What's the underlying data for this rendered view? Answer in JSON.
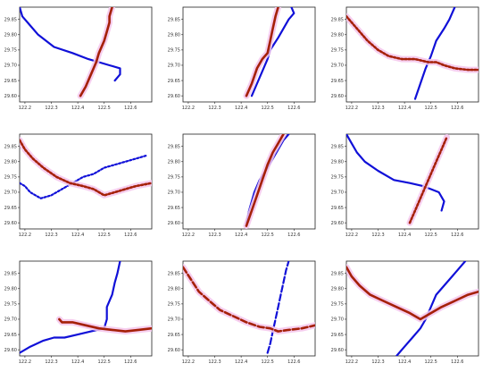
{
  "colors": {
    "blue_track": "#1010d8",
    "red_track": "#a52008",
    "halo": "#f4c6ec"
  },
  "chart_data": [
    {
      "type": "line",
      "panel": 1,
      "xlim": [
        122.18,
        122.68
      ],
      "ylim": [
        29.58,
        29.89
      ],
      "xticks": [
        "122.2",
        "122.3",
        "122.4",
        "122.5",
        "122.6"
      ],
      "yticks": [
        "29.60",
        "29.65",
        "29.70",
        "29.75",
        "29.80",
        "29.85"
      ],
      "series": [
        {
          "color": "blue_track",
          "style": "solid",
          "x": [
            122.18,
            122.19,
            122.22,
            122.25,
            122.31,
            122.38,
            122.44,
            122.52,
            122.56,
            122.56,
            122.54
          ],
          "y": [
            29.89,
            29.86,
            29.83,
            29.8,
            29.76,
            29.74,
            29.72,
            29.7,
            29.69,
            29.67,
            29.65
          ]
        },
        {
          "color": "red_track",
          "style": "solid",
          "halo": true,
          "x": [
            122.41,
            122.43,
            122.45,
            122.47,
            122.48,
            122.5,
            122.51,
            122.52,
            122.52,
            122.53
          ],
          "y": [
            29.6,
            29.63,
            29.67,
            29.71,
            29.74,
            29.78,
            29.81,
            29.84,
            29.86,
            29.89
          ]
        }
      ]
    },
    {
      "type": "line",
      "panel": 2,
      "xlim": [
        122.18,
        122.68
      ],
      "ylim": [
        29.58,
        29.89
      ],
      "xticks": [
        "122.2",
        "122.3",
        "122.4",
        "122.5",
        "122.6"
      ],
      "yticks": [
        "29.60",
        "29.65",
        "29.70",
        "29.75",
        "29.80",
        "29.85"
      ],
      "series": [
        {
          "color": "blue_track",
          "style": "solid",
          "x": [
            122.44,
            122.46,
            122.48,
            122.5,
            122.51,
            122.54,
            122.56,
            122.58,
            122.6,
            122.59
          ],
          "y": [
            29.6,
            29.64,
            29.68,
            29.72,
            29.75,
            29.79,
            29.82,
            29.85,
            29.87,
            29.89
          ]
        },
        {
          "color": "red_track",
          "style": "solid",
          "halo": true,
          "x": [
            122.42,
            122.44,
            122.46,
            122.48,
            122.5,
            122.51,
            122.52,
            122.53,
            122.54
          ],
          "y": [
            29.6,
            29.64,
            29.69,
            29.72,
            29.74,
            29.78,
            29.82,
            29.86,
            29.89
          ]
        }
      ]
    },
    {
      "type": "line",
      "panel": 3,
      "xlim": [
        122.18,
        122.68
      ],
      "ylim": [
        29.58,
        29.89
      ],
      "xticks": [
        "122.2",
        "122.3",
        "122.4",
        "122.5",
        "122.6"
      ],
      "yticks": [
        "29.60",
        "29.65",
        "29.70",
        "29.75",
        "29.80",
        "29.85"
      ],
      "series": [
        {
          "color": "blue_track",
          "style": "solid",
          "x": [
            122.44,
            122.46,
            122.48,
            122.5,
            122.52,
            122.55,
            122.57,
            122.59
          ],
          "y": [
            29.59,
            29.64,
            29.69,
            29.73,
            29.78,
            29.82,
            29.85,
            29.89
          ]
        },
        {
          "color": "red_track",
          "style": "dotted",
          "halo": true,
          "x": [
            122.18,
            122.22,
            122.26,
            122.3,
            122.34,
            122.39,
            122.44,
            122.49,
            122.52,
            122.55,
            122.59,
            122.64,
            122.68
          ],
          "y": [
            29.86,
            29.82,
            29.78,
            29.75,
            29.73,
            29.72,
            29.72,
            29.71,
            29.71,
            29.7,
            29.69,
            29.685,
            29.685
          ]
        }
      ]
    },
    {
      "type": "line",
      "panel": 4,
      "xlim": [
        122.18,
        122.68
      ],
      "ylim": [
        29.58,
        29.89
      ],
      "xticks": [
        "122.2",
        "122.3",
        "122.4",
        "122.5",
        "122.6"
      ],
      "yticks": [
        "29.60",
        "29.65",
        "29.70",
        "29.75",
        "29.80",
        "29.85"
      ],
      "series": [
        {
          "color": "blue_track",
          "style": "dotted",
          "x": [
            122.18,
            122.2,
            122.22,
            122.26,
            122.3,
            122.34,
            122.38,
            122.42,
            122.46,
            122.5,
            122.54,
            122.58,
            122.62,
            122.66
          ],
          "y": [
            29.73,
            29.72,
            29.7,
            29.68,
            29.69,
            29.71,
            29.73,
            29.75,
            29.76,
            29.78,
            29.79,
            29.8,
            29.81,
            29.82
          ]
        },
        {
          "color": "red_track",
          "style": "dotted",
          "halo": true,
          "x": [
            122.18,
            122.2,
            122.23,
            122.27,
            122.32,
            122.37,
            122.42,
            122.46,
            122.5,
            122.54,
            122.58,
            122.62,
            122.68
          ],
          "y": [
            29.87,
            29.84,
            29.81,
            29.78,
            29.75,
            29.73,
            29.72,
            29.71,
            29.69,
            29.7,
            29.71,
            29.72,
            29.73
          ]
        }
      ]
    },
    {
      "type": "line",
      "panel": 5,
      "xlim": [
        122.18,
        122.68
      ],
      "ylim": [
        29.58,
        29.89
      ],
      "xticks": [
        "122.2",
        "122.3",
        "122.4",
        "122.5",
        "122.6"
      ],
      "yticks": [
        "29.60",
        "29.65",
        "29.70",
        "29.75",
        "29.80",
        "29.85"
      ],
      "series": [
        {
          "color": "blue_track",
          "style": "solid",
          "x": [
            122.42,
            122.43,
            122.44,
            122.45,
            122.47,
            122.5,
            122.52,
            122.54,
            122.56,
            122.58
          ],
          "y": [
            29.6,
            29.64,
            29.67,
            29.7,
            29.74,
            29.78,
            29.81,
            29.84,
            29.87,
            29.89
          ]
        },
        {
          "color": "red_track",
          "style": "solid",
          "halo": true,
          "x": [
            122.42,
            122.44,
            122.46,
            122.48,
            122.5,
            122.52,
            122.54,
            122.56
          ],
          "y": [
            29.59,
            29.64,
            29.69,
            29.74,
            29.79,
            29.83,
            29.86,
            29.89
          ]
        }
      ]
    },
    {
      "type": "line",
      "panel": 6,
      "xlim": [
        122.18,
        122.68
      ],
      "ylim": [
        29.58,
        29.89
      ],
      "xticks": [
        "122.2",
        "122.3",
        "122.4",
        "122.5",
        "122.6"
      ],
      "yticks": [
        "29.60",
        "29.65",
        "29.70",
        "29.75",
        "29.80",
        "29.85"
      ],
      "series": [
        {
          "color": "blue_track",
          "style": "solid",
          "x": [
            122.18,
            122.2,
            122.22,
            122.25,
            122.3,
            122.36,
            122.42,
            122.47,
            122.5,
            122.53,
            122.55,
            122.54
          ],
          "y": [
            29.89,
            29.86,
            29.83,
            29.8,
            29.77,
            29.74,
            29.73,
            29.72,
            29.71,
            29.7,
            29.67,
            29.64
          ]
        },
        {
          "color": "red_track",
          "style": "dotted",
          "halo": true,
          "x": [
            122.42,
            122.44,
            122.46,
            122.48,
            122.5,
            122.52,
            122.54,
            122.56
          ],
          "y": [
            29.6,
            29.64,
            29.68,
            29.72,
            29.76,
            29.8,
            29.84,
            29.88
          ]
        }
      ]
    },
    {
      "type": "line",
      "panel": 7,
      "xlim": [
        122.18,
        122.68
      ],
      "ylim": [
        29.58,
        29.89
      ],
      "xticks": [
        "122.2",
        "122.3",
        "122.4",
        "122.5",
        "122.6"
      ],
      "yticks": [
        "29.60",
        "29.65",
        "29.70",
        "29.75",
        "29.80",
        "29.85"
      ],
      "series": [
        {
          "color": "blue_track",
          "style": "solid",
          "x": [
            122.18,
            122.22,
            122.27,
            122.31,
            122.35,
            122.4,
            122.45,
            122.5,
            122.51,
            122.51,
            122.53,
            122.54,
            122.55,
            122.56
          ],
          "y": [
            29.59,
            29.61,
            29.63,
            29.64,
            29.64,
            29.65,
            29.66,
            29.67,
            29.7,
            29.74,
            29.78,
            29.82,
            29.85,
            29.89
          ]
        },
        {
          "color": "red_track",
          "style": "solid",
          "halo": true,
          "x": [
            122.33,
            122.34,
            122.38,
            122.43,
            122.48,
            122.53,
            122.58,
            122.63,
            122.68
          ],
          "y": [
            29.7,
            29.69,
            29.69,
            29.68,
            29.67,
            29.665,
            29.66,
            29.665,
            29.67
          ]
        }
      ]
    },
    {
      "type": "line",
      "panel": 8,
      "xlim": [
        122.18,
        122.68
      ],
      "ylim": [
        29.58,
        29.89
      ],
      "xticks": [
        "122.2",
        "122.3",
        "122.4",
        "122.5",
        "122.6"
      ],
      "yticks": [
        "29.60",
        "29.65",
        "29.70",
        "29.75",
        "29.80",
        "29.85"
      ],
      "series": [
        {
          "color": "blue_track",
          "style": "dashed",
          "x": [
            122.5,
            122.51,
            122.52,
            122.53,
            122.54,
            122.55,
            122.56,
            122.57,
            122.58
          ],
          "y": [
            29.59,
            29.62,
            29.66,
            29.7,
            29.74,
            29.78,
            29.82,
            29.86,
            29.89
          ]
        },
        {
          "color": "red_track",
          "style": "dashed",
          "halo": true,
          "x": [
            122.18,
            122.21,
            122.24,
            122.28,
            122.32,
            122.37,
            122.42,
            122.47,
            122.51,
            122.54,
            122.58,
            122.63,
            122.68
          ],
          "y": [
            29.87,
            29.83,
            29.79,
            29.76,
            29.73,
            29.71,
            29.69,
            29.675,
            29.67,
            29.66,
            29.665,
            29.67,
            29.68
          ]
        }
      ]
    },
    {
      "type": "line",
      "panel": 9,
      "xlim": [
        122.18,
        122.68
      ],
      "ylim": [
        29.58,
        29.89
      ],
      "xticks": [
        "122.2",
        "122.3",
        "122.4",
        "122.5",
        "122.6"
      ],
      "yticks": [
        "29.60",
        "29.65",
        "29.70",
        "29.75",
        "29.80",
        "29.85"
      ],
      "series": [
        {
          "color": "blue_track",
          "style": "solid",
          "x": [
            122.37,
            122.4,
            122.43,
            122.46,
            122.48,
            122.5,
            122.52,
            122.55,
            122.59,
            122.63
          ],
          "y": [
            29.58,
            29.61,
            29.64,
            29.67,
            29.7,
            29.74,
            29.78,
            29.81,
            29.85,
            29.89
          ]
        },
        {
          "color": "red_track",
          "style": "solid",
          "halo": true,
          "x": [
            122.18,
            122.2,
            122.23,
            122.27,
            122.32,
            122.37,
            122.42,
            122.46,
            122.5,
            122.54,
            122.59,
            122.64,
            122.68
          ],
          "y": [
            29.87,
            29.84,
            29.81,
            29.78,
            29.76,
            29.74,
            29.72,
            29.7,
            29.72,
            29.74,
            29.76,
            29.78,
            29.79
          ]
        }
      ]
    }
  ]
}
